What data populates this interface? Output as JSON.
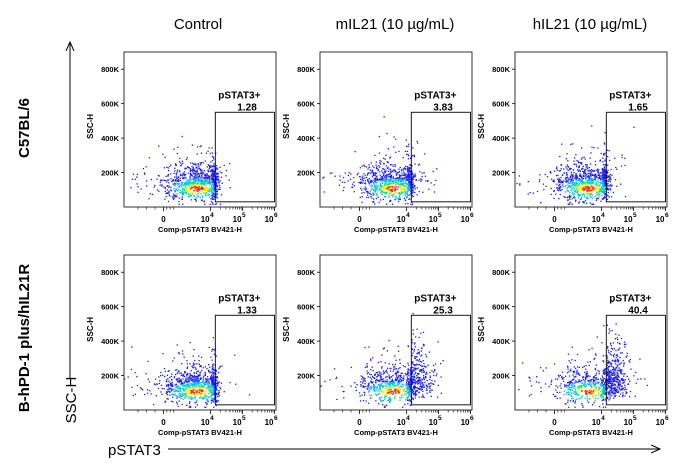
{
  "figure": {
    "col_titles": [
      "Control",
      "mIL21 (10 µg/mL)",
      "hIL21 (10 µg/mL)"
    ],
    "row_titles": [
      "C57BL/6",
      "B-hPD-1 plus/hIL21R"
    ],
    "y_arrow_label": "SSC-H",
    "x_arrow_label": "pSTAT3"
  },
  "panel_axes": {
    "x_axis_label": "Comp-pSTAT3 BV421-H",
    "y_axis_label": "SSC-H",
    "x_tick_labels": [
      "0",
      "10",
      "4",
      "10",
      "5",
      "10",
      "6"
    ],
    "y_tick_labels": [
      "800K",
      "600K",
      "400K",
      "200K"
    ],
    "gate_label": "pSTAT3+"
  },
  "colors": {
    "density": [
      "#1a1aff",
      "#00b4ff",
      "#00e0a0",
      "#ffee00",
      "#ff2a00"
    ],
    "axis": "#000000",
    "gate": "#000000"
  },
  "chart_data": [
    {
      "type": "scatter",
      "row": "C57BL/6",
      "column": "Control",
      "x_scale": "biexponential",
      "x_range": [
        -1000,
        1000000
      ],
      "y_range": [
        0,
        900000
      ],
      "ylabel": "SSC-H",
      "xlabel": "Comp-pSTAT3 BV421-H",
      "gate": {
        "name": "pSTAT3+",
        "percent": "1.28",
        "x_from": 14000,
        "x_to": 1000000,
        "y_from": 30000,
        "y_to": 550000
      }
    },
    {
      "type": "scatter",
      "row": "C57BL/6",
      "column": "mIL21 (10 µg/mL)",
      "x_scale": "biexponential",
      "x_range": [
        -1000,
        1000000
      ],
      "y_range": [
        0,
        900000
      ],
      "ylabel": "SSC-H",
      "xlabel": "Comp-pSTAT3 BV421-H",
      "gate": {
        "name": "pSTAT3+",
        "percent": "3.83",
        "x_from": 14000,
        "x_to": 1000000,
        "y_from": 30000,
        "y_to": 550000
      }
    },
    {
      "type": "scatter",
      "row": "C57BL/6",
      "column": "hIL21 (10 µg/mL)",
      "x_scale": "biexponential",
      "x_range": [
        -1000,
        1000000
      ],
      "y_range": [
        0,
        900000
      ],
      "ylabel": "SSC-H",
      "xlabel": "Comp-pSTAT3 BV421-H",
      "gate": {
        "name": "pSTAT3+",
        "percent": "1.65",
        "x_from": 14000,
        "x_to": 1000000,
        "y_from": 30000,
        "y_to": 550000
      }
    },
    {
      "type": "scatter",
      "row": "B-hPD-1 plus/hIL21R",
      "column": "Control",
      "x_scale": "biexponential",
      "x_range": [
        -1000,
        1000000
      ],
      "y_range": [
        0,
        900000
      ],
      "ylabel": "SSC-H",
      "xlabel": "Comp-pSTAT3 BV421-H",
      "gate": {
        "name": "pSTAT3+",
        "percent": "1.33",
        "x_from": 14000,
        "x_to": 1000000,
        "y_from": 30000,
        "y_to": 550000
      }
    },
    {
      "type": "scatter",
      "row": "B-hPD-1 plus/hIL21R",
      "column": "mIL21 (10 µg/mL)",
      "x_scale": "biexponential",
      "x_range": [
        -1000,
        1000000
      ],
      "y_range": [
        0,
        900000
      ],
      "ylabel": "SSC-H",
      "xlabel": "Comp-pSTAT3 BV421-H",
      "gate": {
        "name": "pSTAT3+",
        "percent": "25.3",
        "x_from": 14000,
        "x_to": 1000000,
        "y_from": 30000,
        "y_to": 550000
      }
    },
    {
      "type": "scatter",
      "row": "B-hPD-1 plus/hIL21R",
      "column": "hIL21 (10 µg/mL)",
      "x_scale": "biexponential",
      "x_range": [
        -1000,
        1000000
      ],
      "y_range": [
        0,
        900000
      ],
      "ylabel": "SSC-H",
      "xlabel": "Comp-pSTAT3 BV421-H",
      "gate": {
        "name": "pSTAT3+",
        "percent": "40.4",
        "x_from": 14000,
        "x_to": 1000000,
        "y_from": 30000,
        "y_to": 550000
      }
    }
  ]
}
